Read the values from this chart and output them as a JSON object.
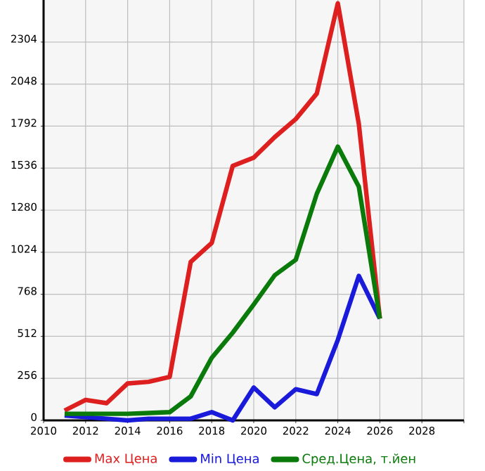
{
  "chart_data": {
    "type": "line",
    "x": [
      2011,
      2012,
      2013,
      2014,
      2015,
      2016,
      2017,
      2018,
      2019,
      2020,
      2021,
      2022,
      2023,
      2024,
      2025,
      2026
    ],
    "series": [
      {
        "name": "Max Цена",
        "color": "#dd1f1f",
        "values": [
          60,
          125,
          105,
          225,
          235,
          265,
          965,
          1080,
          1550,
          1600,
          1725,
          1835,
          1990,
          2540,
          1805,
          620
        ]
      },
      {
        "name": "Min Цена",
        "color": "#1a1adb",
        "values": [
          30,
          20,
          10,
          0,
          10,
          10,
          10,
          50,
          0,
          200,
          80,
          190,
          160,
          490,
          880,
          620
        ]
      },
      {
        "name": "Сред.Цена, т.йен",
        "color": "#0a7a0a",
        "values": [
          40,
          40,
          40,
          40,
          45,
          50,
          146,
          381,
          534,
          706,
          884,
          978,
          1380,
          1667,
          1423,
          620
        ]
      }
    ],
    "xlim": [
      2010,
      2030
    ],
    "xticks": [
      2010,
      2012,
      2014,
      2016,
      2018,
      2020,
      2022,
      2024,
      2026,
      2028,
      {
        "value": 2030,
        "label": null
      }
    ],
    "ylim": [
      0,
      2560
    ],
    "yticks": [
      0,
      256,
      512,
      768,
      1024,
      1280,
      1536,
      1792,
      2048,
      2304
    ],
    "grid": true,
    "legend": "bottom",
    "marker": "none",
    "line_style": "solid"
  }
}
